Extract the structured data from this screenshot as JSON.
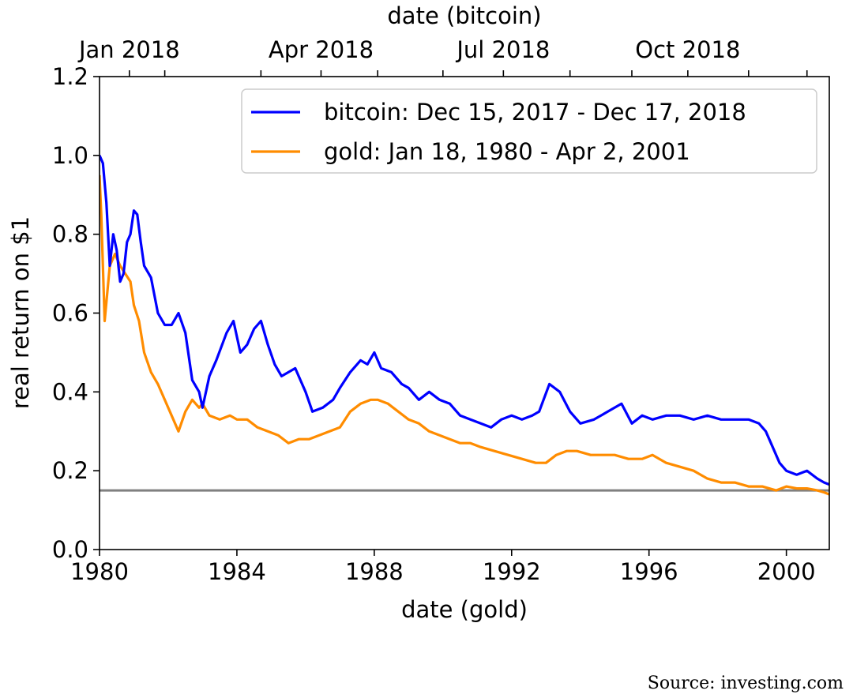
{
  "source_note": "Source:  investing.com",
  "chart_data": {
    "type": "line",
    "title": "",
    "xlabel": "date (gold)",
    "x2label": "date (bitcoin)",
    "ylabel": "real return on $1",
    "xlim": [
      1980.0,
      2001.25
    ],
    "ylim": [
      0.0,
      1.2
    ],
    "grid": false,
    "legend_position": "top-right",
    "x_ticks": [
      "1980",
      "1984",
      "1988",
      "1992",
      "1996",
      "2000"
    ],
    "x_tick_values": [
      1980,
      1984,
      1988,
      1992,
      1996,
      2000
    ],
    "x2_ticks": [
      "Jan 2018",
      "Apr 2018",
      "Jul 2018",
      "Oct 2018"
    ],
    "x2_tick_values": [
      1980.87,
      1986.45,
      1991.76,
      1997.13
    ],
    "x2_minor_tick_values": [
      1981.9,
      1984.7,
      1988.1,
      1990.0,
      1993.7,
      1995.5,
      1998.9,
      2000.6
    ],
    "y_ticks": [
      "0.0",
      "0.2",
      "0.4",
      "0.6",
      "0.8",
      "1.0",
      "1.2"
    ],
    "y_tick_values": [
      0.0,
      0.2,
      0.4,
      0.6,
      0.8,
      1.0,
      1.2
    ],
    "hline": {
      "y": 0.15,
      "color": "#808080"
    },
    "series": [
      {
        "name": "bitcoin: Dec 15, 2017 - Dec 17, 2018",
        "color": "#0000ff",
        "x": [
          1980.0,
          1980.1,
          1980.2,
          1980.3,
          1980.4,
          1980.5,
          1980.6,
          1980.7,
          1980.8,
          1980.9,
          1981.0,
          1981.1,
          1981.2,
          1981.3,
          1981.5,
          1981.7,
          1981.9,
          1982.1,
          1982.3,
          1982.5,
          1982.7,
          1982.9,
          1983.0,
          1983.2,
          1983.4,
          1983.7,
          1983.9,
          1984.1,
          1984.3,
          1984.5,
          1984.7,
          1984.9,
          1985.1,
          1985.3,
          1985.5,
          1985.7,
          1986.0,
          1986.2,
          1986.5,
          1986.8,
          1987.0,
          1987.3,
          1987.6,
          1987.8,
          1988.0,
          1988.2,
          1988.5,
          1988.8,
          1989.0,
          1989.3,
          1989.6,
          1989.9,
          1990.2,
          1990.5,
          1990.8,
          1991.1,
          1991.4,
          1991.7,
          1992.0,
          1992.3,
          1992.6,
          1992.8,
          1993.1,
          1993.4,
          1993.7,
          1994.0,
          1994.4,
          1994.8,
          1995.2,
          1995.5,
          1995.8,
          1996.1,
          1996.5,
          1996.9,
          1997.3,
          1997.7,
          1998.1,
          1998.5,
          1998.9,
          1999.2,
          1999.4,
          1999.6,
          1999.8,
          2000.0,
          2000.3,
          2000.6,
          2000.9,
          2001.1,
          2001.25
        ],
        "y": [
          1.0,
          0.98,
          0.88,
          0.72,
          0.8,
          0.76,
          0.68,
          0.7,
          0.78,
          0.8,
          0.86,
          0.85,
          0.78,
          0.72,
          0.69,
          0.6,
          0.57,
          0.57,
          0.6,
          0.55,
          0.43,
          0.4,
          0.36,
          0.44,
          0.48,
          0.55,
          0.58,
          0.5,
          0.52,
          0.56,
          0.58,
          0.52,
          0.47,
          0.44,
          0.45,
          0.46,
          0.4,
          0.35,
          0.36,
          0.38,
          0.41,
          0.45,
          0.48,
          0.47,
          0.5,
          0.46,
          0.45,
          0.42,
          0.41,
          0.38,
          0.4,
          0.38,
          0.37,
          0.34,
          0.33,
          0.32,
          0.31,
          0.33,
          0.34,
          0.33,
          0.34,
          0.35,
          0.42,
          0.4,
          0.35,
          0.32,
          0.33,
          0.35,
          0.37,
          0.32,
          0.34,
          0.33,
          0.34,
          0.34,
          0.33,
          0.34,
          0.33,
          0.33,
          0.33,
          0.32,
          0.3,
          0.26,
          0.22,
          0.2,
          0.19,
          0.2,
          0.18,
          0.17,
          0.165
        ]
      },
      {
        "name": "gold: Jan 18, 1980 - Apr 2, 2001",
        "color": "#ff8c00",
        "x": [
          1980.0,
          1980.05,
          1980.15,
          1980.3,
          1980.45,
          1980.6,
          1980.75,
          1980.9,
          1981.0,
          1981.15,
          1981.3,
          1981.5,
          1981.7,
          1981.9,
          1982.1,
          1982.3,
          1982.5,
          1982.7,
          1982.9,
          1983.0,
          1983.2,
          1983.5,
          1983.8,
          1984.0,
          1984.3,
          1984.6,
          1984.9,
          1985.2,
          1985.5,
          1985.8,
          1986.1,
          1986.4,
          1986.7,
          1987.0,
          1987.3,
          1987.6,
          1987.9,
          1988.1,
          1988.4,
          1988.7,
          1989.0,
          1989.3,
          1989.6,
          1989.9,
          1990.2,
          1990.5,
          1990.8,
          1991.1,
          1991.5,
          1991.9,
          1992.3,
          1992.7,
          1993.0,
          1993.3,
          1993.6,
          1993.9,
          1994.3,
          1994.7,
          1995.0,
          1995.4,
          1995.8,
          1996.1,
          1996.5,
          1996.9,
          1997.3,
          1997.7,
          1998.1,
          1998.5,
          1998.9,
          1999.3,
          1999.7,
          2000.0,
          2000.3,
          2000.6,
          2000.9,
          2001.1,
          2001.25
        ],
        "y": [
          0.95,
          0.85,
          0.58,
          0.72,
          0.75,
          0.72,
          0.7,
          0.68,
          0.62,
          0.58,
          0.5,
          0.45,
          0.42,
          0.38,
          0.34,
          0.3,
          0.35,
          0.38,
          0.36,
          0.37,
          0.34,
          0.33,
          0.34,
          0.33,
          0.33,
          0.31,
          0.3,
          0.29,
          0.27,
          0.28,
          0.28,
          0.29,
          0.3,
          0.31,
          0.35,
          0.37,
          0.38,
          0.38,
          0.37,
          0.35,
          0.33,
          0.32,
          0.3,
          0.29,
          0.28,
          0.27,
          0.27,
          0.26,
          0.25,
          0.24,
          0.23,
          0.22,
          0.22,
          0.24,
          0.25,
          0.25,
          0.24,
          0.24,
          0.24,
          0.23,
          0.23,
          0.24,
          0.22,
          0.21,
          0.2,
          0.18,
          0.17,
          0.17,
          0.16,
          0.16,
          0.15,
          0.16,
          0.155,
          0.155,
          0.15,
          0.145,
          0.14
        ]
      }
    ]
  }
}
